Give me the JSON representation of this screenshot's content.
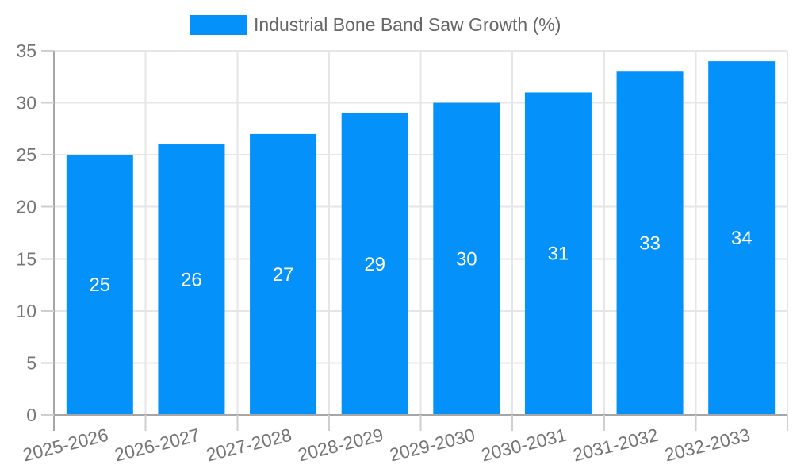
{
  "legend": {
    "label": "Industrial Bone Band Saw Growth (%)"
  },
  "chart_data": {
    "type": "bar",
    "title": "",
    "xlabel": "",
    "ylabel": "",
    "series_name": "Industrial Bone Band Saw Growth (%)",
    "categories": [
      "2025-2026",
      "2026-2027",
      "2027-2028",
      "2028-2029",
      "2029-2030",
      "2030-2031",
      "2031-2032",
      "2032-2033"
    ],
    "values": [
      25,
      26,
      27,
      29,
      30,
      31,
      33,
      34
    ],
    "value_labels_shown": true,
    "value_label_position": "center",
    "ylim": [
      0,
      35
    ],
    "ytick_step": 5,
    "yticks": [
      0,
      5,
      10,
      15,
      20,
      25,
      30,
      35
    ],
    "grid": true,
    "legend_position": "top-center",
    "x_label_rotation_deg": -14,
    "colors": {
      "bar": "#0591fa",
      "value_label": "#ffffff",
      "axis_text": "#757575",
      "gridline": "#e6e6e6",
      "axis_line": "#a6a6a6",
      "tick": "#cfcfcf",
      "background": "#ffffff"
    }
  }
}
